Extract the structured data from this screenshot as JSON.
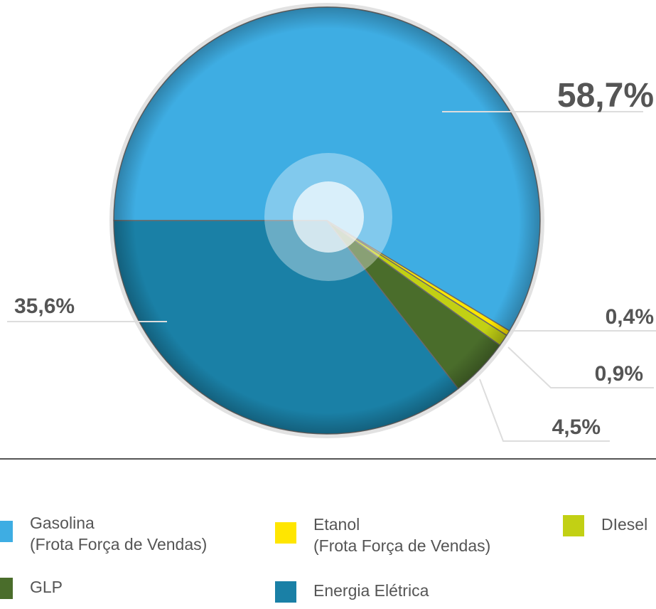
{
  "chart_data": {
    "type": "pie",
    "categories": [
      "Gasolina\n(Frota Força de Vendas)",
      "Etanol\n(Frota Força de Vendas)",
      "DIesel",
      "GLP",
      "Energia Elétrica"
    ],
    "values": [
      58.7,
      0.4,
      0.9,
      4.5,
      35.6
    ],
    "value_labels": [
      "58,7%",
      "0,4%",
      "0,9%",
      "4,5%",
      "35,6%"
    ],
    "colors": [
      "#3eade3",
      "#ffe600",
      "#c2d014",
      "#4a6d2b",
      "#1a80a6"
    ]
  }
}
